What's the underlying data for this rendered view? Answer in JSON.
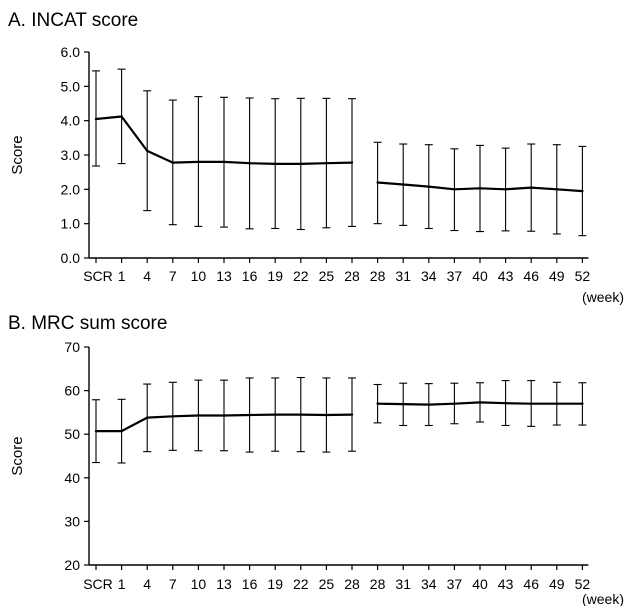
{
  "chart_data": [
    {
      "panel_title": "A. INCAT score",
      "type": "line",
      "ylabel": "Score",
      "xunit": "(week)",
      "categories": [
        "SCR",
        "1",
        "4",
        "7",
        "10",
        "13",
        "16",
        "19",
        "22",
        "25",
        "28",
        "28",
        "31",
        "34",
        "37",
        "40",
        "43",
        "46",
        "49",
        "52"
      ],
      "ylim": [
        0,
        6
      ],
      "ytick_labels": [
        "0.0",
        "1.0",
        "2.0",
        "3.0",
        "4.0",
        "5.0",
        "6.0"
      ],
      "grid": false,
      "series": [
        {
          "segments": [
            [
              0,
              10
            ],
            [
              11,
              19
            ]
          ],
          "values": [
            4.05,
            4.12,
            3.12,
            2.78,
            2.8,
            2.8,
            2.76,
            2.74,
            2.74,
            2.76,
            2.78,
            2.2,
            2.14,
            2.08,
            2.0,
            2.03,
            2.0,
            2.05,
            2.0,
            1.95
          ],
          "error_high": [
            5.45,
            5.5,
            4.87,
            4.6,
            4.7,
            4.68,
            4.66,
            4.64,
            4.65,
            4.65,
            4.64,
            3.37,
            3.32,
            3.3,
            3.18,
            3.28,
            3.2,
            3.32,
            3.3,
            3.25
          ],
          "error_low": [
            2.68,
            2.75,
            1.38,
            0.97,
            0.92,
            0.9,
            0.85,
            0.86,
            0.83,
            0.88,
            0.92,
            1.0,
            0.95,
            0.86,
            0.8,
            0.77,
            0.79,
            0.78,
            0.7,
            0.65
          ]
        }
      ]
    },
    {
      "panel_title": "B. MRC sum score",
      "type": "line",
      "ylabel": "Score",
      "xunit": "(week)",
      "categories": [
        "SCR",
        "1",
        "4",
        "7",
        "10",
        "13",
        "16",
        "19",
        "22",
        "25",
        "28",
        "28",
        "31",
        "34",
        "37",
        "40",
        "43",
        "46",
        "49",
        "52"
      ],
      "ylim": [
        20,
        70
      ],
      "ytick_labels": [
        "20",
        "30",
        "40",
        "50",
        "60",
        "70"
      ],
      "grid": false,
      "series": [
        {
          "segments": [
            [
              0,
              10
            ],
            [
              11,
              19
            ]
          ],
          "values": [
            50.7,
            50.7,
            53.8,
            54.1,
            54.3,
            54.3,
            54.4,
            54.5,
            54.5,
            54.4,
            54.5,
            57.0,
            56.9,
            56.8,
            57.0,
            57.3,
            57.1,
            57.0,
            57.0,
            57.0
          ],
          "error_high": [
            57.9,
            58.0,
            61.5,
            61.9,
            62.4,
            62.4,
            62.9,
            62.9,
            63.0,
            62.9,
            62.9,
            61.4,
            61.7,
            61.6,
            61.7,
            61.8,
            62.3,
            62.3,
            61.9,
            61.8
          ],
          "error_low": [
            43.5,
            43.4,
            46.0,
            46.3,
            46.2,
            46.2,
            45.9,
            46.1,
            46.0,
            45.9,
            46.1,
            52.6,
            52.0,
            52.0,
            52.4,
            52.8,
            52.0,
            51.8,
            52.1,
            52.1
          ]
        }
      ]
    }
  ]
}
